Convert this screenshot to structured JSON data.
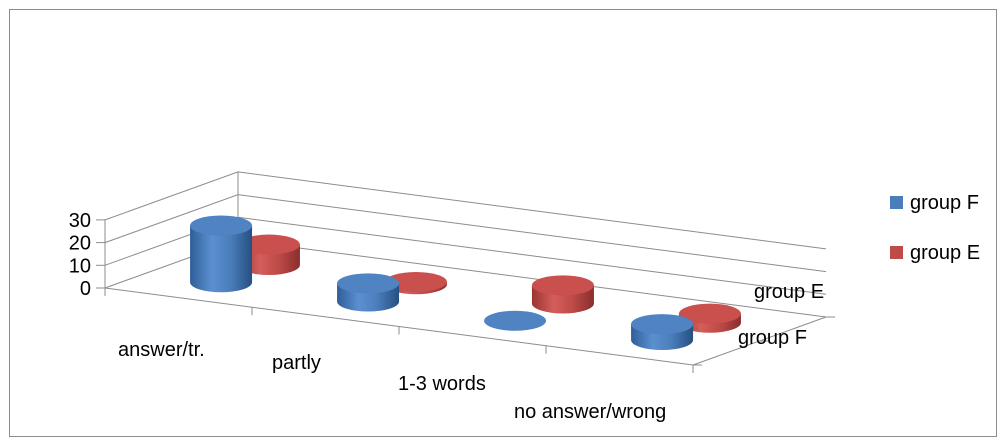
{
  "chart_data": {
    "type": "bar",
    "variant": "3d-cylinder",
    "title": "",
    "xlabel": "",
    "ylabel": "",
    "categories": [
      "answer/tr.",
      "partly",
      "1-3 words",
      "no answer/wrong"
    ],
    "depth_categories": [
      "group E",
      "group F"
    ],
    "series": [
      {
        "name": "group F",
        "values": [
          25,
          8,
          0,
          7
        ],
        "color": "#4a7ebb"
      },
      {
        "name": "group E",
        "values": [
          9,
          1,
          8,
          4
        ],
        "color": "#be4b48"
      }
    ],
    "ylim": [
      0,
      30
    ],
    "yticks": [
      0,
      10,
      20,
      30
    ],
    "grid": true,
    "legend_position": "right"
  }
}
